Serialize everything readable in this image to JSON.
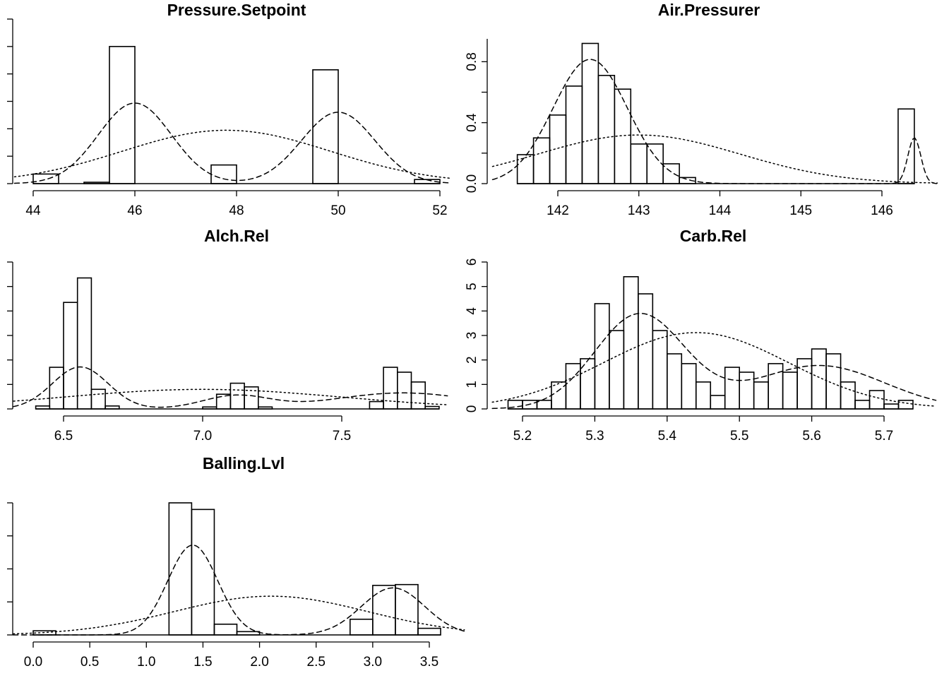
{
  "chart_data": [
    {
      "type": "histogram",
      "title": "Pressure.Setpoint",
      "x_ticks": [
        44,
        46,
        48,
        50,
        52
      ],
      "x_tick_labels": [
        "44",
        "46",
        "48",
        "50",
        "52"
      ],
      "xlim": [
        43.8,
        52.2
      ],
      "y_tick_labels_visible": false,
      "ylim": [
        0,
        0.6
      ],
      "y_ticks": [
        0,
        0.1,
        0.2,
        0.3,
        0.4,
        0.5,
        0.6
      ],
      "bins": [
        {
          "x0": 44.0,
          "x1": 44.5,
          "density": 0.035
        },
        {
          "x0": 45.0,
          "x1": 45.5,
          "density": 0.005
        },
        {
          "x0": 45.5,
          "x1": 46.0,
          "density": 0.5
        },
        {
          "x0": 47.5,
          "x1": 48.0,
          "density": 0.068
        },
        {
          "x0": 49.5,
          "x1": 50.0,
          "density": 0.415
        },
        {
          "x0": 51.5,
          "x1": 52.0,
          "density": 0.015
        }
      ],
      "curves": [
        {
          "style": "dashed",
          "kind": "mixture",
          "components": [
            {
              "w": 0.53,
              "mu": 46.0,
              "sd": 0.72
            },
            {
              "w": 0.47,
              "mu": 50.0,
              "sd": 0.72
            }
          ]
        },
        {
          "style": "dotted",
          "kind": "normal",
          "mu": 47.8,
          "sd": 2.05
        }
      ]
    },
    {
      "type": "histogram",
      "title": "Air.Pressurer",
      "x_ticks": [
        142,
        143,
        144,
        145,
        146
      ],
      "x_tick_labels": [
        "142",
        "143",
        "144",
        "145",
        "146"
      ],
      "xlim": [
        141.3,
        146.6
      ],
      "y_tick_labels_visible": true,
      "y_ticks": [
        0.0,
        0.4,
        0.8
      ],
      "y_tick_labels": [
        "0.0",
        "0.4",
        "0.8"
      ],
      "y_minor_ticks": [
        0.2,
        0.6
      ],
      "ylim": [
        0,
        0.95
      ],
      "bins": [
        {
          "x0": 141.5,
          "x1": 141.7,
          "density": 0.19
        },
        {
          "x0": 141.7,
          "x1": 141.9,
          "density": 0.3
        },
        {
          "x0": 141.9,
          "x1": 142.1,
          "density": 0.45
        },
        {
          "x0": 142.1,
          "x1": 142.3,
          "density": 0.64
        },
        {
          "x0": 142.3,
          "x1": 142.5,
          "density": 0.92
        },
        {
          "x0": 142.5,
          "x1": 142.7,
          "density": 0.71
        },
        {
          "x0": 142.7,
          "x1": 142.9,
          "density": 0.62
        },
        {
          "x0": 142.9,
          "x1": 143.1,
          "density": 0.26
        },
        {
          "x0": 143.1,
          "x1": 143.3,
          "density": 0.26
        },
        {
          "x0": 143.3,
          "x1": 143.5,
          "density": 0.13
        },
        {
          "x0": 143.5,
          "x1": 143.7,
          "density": 0.04
        },
        {
          "x0": 146.2,
          "x1": 146.4,
          "density": 0.49
        }
      ],
      "curves": [
        {
          "style": "dashed",
          "kind": "mixture",
          "components": [
            {
              "w": 0.94,
              "mu": 142.4,
              "sd": 0.46
            },
            {
              "w": 0.06,
              "mu": 146.4,
              "sd": 0.08
            }
          ]
        },
        {
          "style": "dotted",
          "kind": "normal",
          "mu": 143.0,
          "sd": 1.25
        }
      ]
    },
    {
      "type": "histogram",
      "title": "Alch.Rel",
      "x_ticks": [
        6.5,
        7.0,
        7.5
      ],
      "x_tick_labels": [
        "6.5",
        "7.0",
        "7.5"
      ],
      "xlim": [
        6.35,
        7.85
      ],
      "y_tick_labels_visible": false,
      "ylim": [
        0,
        6
      ],
      "y_ticks": [
        0,
        1,
        2,
        3,
        4,
        5,
        6
      ],
      "bins": [
        {
          "x0": 6.4,
          "x1": 6.45,
          "density": 0.12
        },
        {
          "x0": 6.45,
          "x1": 6.5,
          "density": 1.7
        },
        {
          "x0": 6.5,
          "x1": 6.55,
          "density": 4.35
        },
        {
          "x0": 6.55,
          "x1": 6.6,
          "density": 5.35
        },
        {
          "x0": 6.6,
          "x1": 6.65,
          "density": 0.8
        },
        {
          "x0": 6.65,
          "x1": 6.7,
          "density": 0.12
        },
        {
          "x0": 7.0,
          "x1": 7.05,
          "density": 0.08
        },
        {
          "x0": 7.05,
          "x1": 7.1,
          "density": 0.6
        },
        {
          "x0": 7.1,
          "x1": 7.15,
          "density": 1.05
        },
        {
          "x0": 7.15,
          "x1": 7.2,
          "density": 0.9
        },
        {
          "x0": 7.2,
          "x1": 7.25,
          "density": 0.08
        },
        {
          "x0": 7.6,
          "x1": 7.65,
          "density": 0.3
        },
        {
          "x0": 7.65,
          "x1": 7.7,
          "density": 1.7
        },
        {
          "x0": 7.7,
          "x1": 7.75,
          "density": 1.5
        },
        {
          "x0": 7.75,
          "x1": 7.8,
          "density": 1.1
        },
        {
          "x0": 7.8,
          "x1": 7.85,
          "density": 0.1
        }
      ],
      "curves": [
        {
          "style": "dashed",
          "kind": "mixture",
          "components": [
            {
              "w": 0.43,
              "mu": 6.56,
              "sd": 0.1
            },
            {
              "w": 0.16,
              "mu": 7.12,
              "sd": 0.12
            },
            {
              "w": 0.41,
              "mu": 7.72,
              "sd": 0.25
            }
          ]
        },
        {
          "style": "dotted",
          "kind": "normal",
          "mu": 7.0,
          "sd": 0.5
        }
      ]
    },
    {
      "type": "histogram",
      "title": "Carb.Rel",
      "x_ticks": [
        5.2,
        5.3,
        5.4,
        5.5,
        5.6,
        5.7
      ],
      "x_tick_labels": [
        "5.2",
        "5.3",
        "5.4",
        "5.5",
        "5.6",
        "5.7"
      ],
      "xlim": [
        5.17,
        5.76
      ],
      "y_tick_labels_visible": true,
      "y_ticks": [
        0,
        1,
        2,
        3,
        4,
        5,
        6
      ],
      "y_tick_labels": [
        "0",
        "1",
        "2",
        "3",
        "4",
        "5",
        "6"
      ],
      "ylim": [
        0,
        6
      ],
      "bins": [
        {
          "x0": 5.18,
          "x1": 5.2,
          "density": 0.35
        },
        {
          "x0": 5.2,
          "x1": 5.22,
          "density": 0.35
        },
        {
          "x0": 5.22,
          "x1": 5.24,
          "density": 0.35
        },
        {
          "x0": 5.24,
          "x1": 5.26,
          "density": 1.1
        },
        {
          "x0": 5.26,
          "x1": 5.28,
          "density": 1.85
        },
        {
          "x0": 5.28,
          "x1": 5.3,
          "density": 2.05
        },
        {
          "x0": 5.3,
          "x1": 5.32,
          "density": 4.3
        },
        {
          "x0": 5.32,
          "x1": 5.34,
          "density": 3.2
        },
        {
          "x0": 5.34,
          "x1": 5.36,
          "density": 5.4
        },
        {
          "x0": 5.36,
          "x1": 5.38,
          "density": 4.7
        },
        {
          "x0": 5.38,
          "x1": 5.4,
          "density": 3.2
        },
        {
          "x0": 5.4,
          "x1": 5.42,
          "density": 2.25
        },
        {
          "x0": 5.42,
          "x1": 5.44,
          "density": 1.85
        },
        {
          "x0": 5.44,
          "x1": 5.46,
          "density": 1.1
        },
        {
          "x0": 5.46,
          "x1": 5.48,
          "density": 0.55
        },
        {
          "x0": 5.48,
          "x1": 5.5,
          "density": 1.7
        },
        {
          "x0": 5.5,
          "x1": 5.52,
          "density": 1.5
        },
        {
          "x0": 5.52,
          "x1": 5.54,
          "density": 1.1
        },
        {
          "x0": 5.54,
          "x1": 5.56,
          "density": 1.85
        },
        {
          "x0": 5.56,
          "x1": 5.58,
          "density": 1.5
        },
        {
          "x0": 5.58,
          "x1": 5.6,
          "density": 2.05
        },
        {
          "x0": 5.6,
          "x1": 5.62,
          "density": 2.45
        },
        {
          "x0": 5.62,
          "x1": 5.64,
          "density": 2.25
        },
        {
          "x0": 5.64,
          "x1": 5.66,
          "density": 1.1
        },
        {
          "x0": 5.66,
          "x1": 5.68,
          "density": 0.35
        },
        {
          "x0": 5.68,
          "x1": 5.7,
          "density": 0.75
        },
        {
          "x0": 5.7,
          "x1": 5.72,
          "density": 0.2
        },
        {
          "x0": 5.72,
          "x1": 5.74,
          "density": 0.35
        }
      ],
      "curves": [
        {
          "style": "dashed",
          "kind": "mixture",
          "components": [
            {
              "w": 0.6,
              "mu": 5.362,
              "sd": 0.062
            },
            {
              "w": 0.4,
              "mu": 5.61,
              "sd": 0.09
            }
          ]
        },
        {
          "style": "dotted",
          "kind": "normal",
          "mu": 5.44,
          "sd": 0.128
        }
      ]
    },
    {
      "type": "histogram",
      "title": "Balling.Lvl",
      "x_ticks": [
        0.0,
        0.5,
        1.0,
        1.5,
        2.0,
        2.5,
        3.0,
        3.5
      ],
      "x_tick_labels": [
        "0.0",
        "0.5",
        "1.0",
        "1.5",
        "2.0",
        "2.5",
        "3.0",
        "3.5"
      ],
      "xlim": [
        -0.1,
        3.75
      ],
      "y_tick_labels_visible": false,
      "ylim": [
        0,
        1.6
      ],
      "y_ticks": [
        0,
        0.4,
        0.8,
        1.2,
        1.6
      ],
      "bins": [
        {
          "x0": 0.0,
          "x1": 0.2,
          "density": 0.05
        },
        {
          "x0": 1.2,
          "x1": 1.4,
          "density": 1.6
        },
        {
          "x0": 1.4,
          "x1": 1.6,
          "density": 1.52
        },
        {
          "x0": 1.6,
          "x1": 1.8,
          "density": 0.13
        },
        {
          "x0": 1.8,
          "x1": 2.0,
          "density": 0.04
        },
        {
          "x0": 2.8,
          "x1": 3.0,
          "density": 0.19
        },
        {
          "x0": 3.0,
          "x1": 3.2,
          "density": 0.6
        },
        {
          "x0": 3.2,
          "x1": 3.4,
          "density": 0.61
        },
        {
          "x0": 3.4,
          "x1": 3.6,
          "density": 0.08
        }
      ],
      "curves": [
        {
          "style": "dashed",
          "kind": "mixture",
          "components": [
            {
              "w": 0.6,
              "mu": 1.41,
              "sd": 0.22
            },
            {
              "w": 0.4,
              "mu": 3.18,
              "sd": 0.28
            }
          ]
        },
        {
          "style": "dotted",
          "kind": "normal",
          "mu": 2.1,
          "sd": 0.85
        }
      ]
    }
  ]
}
